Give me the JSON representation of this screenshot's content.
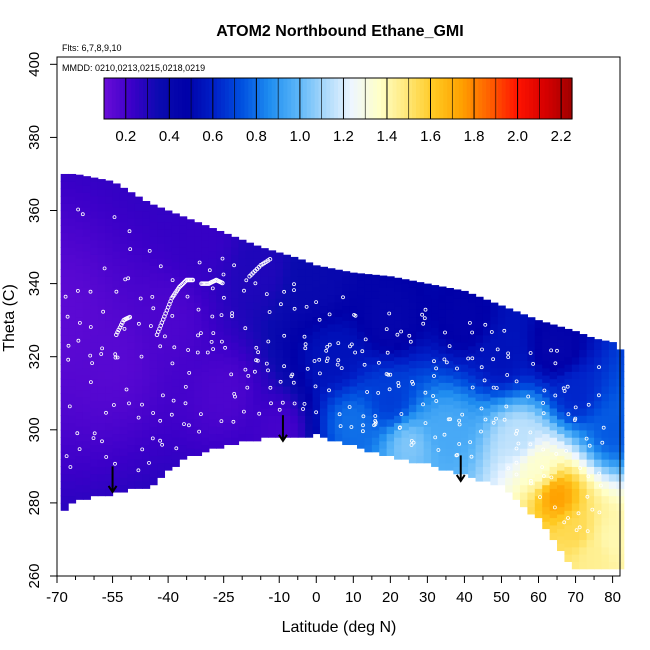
{
  "chart_data": {
    "type": "heatmap",
    "title": "ATOM2 Northbound Ethane_GMI",
    "flights_note": "Flts: 6,7,8,9,10",
    "dates_note": "MMDD: 0210,0213,0215,0218,0219",
    "xlabel": "Latitude (deg N)",
    "ylabel": "Theta (C)",
    "xlim": [
      -70,
      82
    ],
    "ylim": [
      260,
      402
    ],
    "x_major_ticks": [
      -70,
      -55,
      -40,
      -25,
      -10,
      0,
      10,
      20,
      30,
      40,
      50,
      60,
      70,
      80
    ],
    "x_minor_ticks": [
      -65,
      -60,
      -50,
      -45,
      -35,
      -30,
      -20,
      -15,
      -5,
      5,
      15,
      25,
      35,
      45,
      55,
      65,
      75
    ],
    "y_ticks": [
      260,
      280,
      300,
      320,
      340,
      360,
      380,
      400
    ],
    "colorbar": {
      "min": 0.1,
      "max": 2.25,
      "ticks": [
        0.2,
        0.4,
        0.6,
        0.8,
        1.0,
        1.2,
        1.4,
        1.6,
        1.8,
        2.0,
        2.2
      ],
      "tick_labels": [
        "0.2",
        "0.4",
        "0.6",
        "0.8",
        "1.0",
        "1.2",
        "1.4",
        "1.6",
        "1.8",
        "2.0",
        "2.2"
      ],
      "colors": [
        "#6a0dd8",
        "#3b00c8",
        "#0b0bb0",
        "#0000a8",
        "#0020c8",
        "#0050e0",
        "#1e8cf0",
        "#58b4f8",
        "#a8d8fb",
        "#eef6ff",
        "#ffffc8",
        "#ffe878",
        "#ffc820",
        "#ffa000",
        "#ff6000",
        "#ff1400",
        "#d80000",
        "#a00000"
      ]
    },
    "envelope": {
      "lat": [
        -69,
        -65,
        -55,
        -45,
        -35,
        -25,
        -15,
        -5,
        0,
        10,
        20,
        30,
        40,
        50,
        60,
        70,
        75,
        80,
        82
      ],
      "top_theta": [
        370,
        370,
        368,
        362,
        358,
        354,
        350,
        347,
        345,
        343,
        342,
        340,
        338,
        334,
        330,
        327,
        325,
        324,
        322
      ],
      "bottom_theta": [
        278,
        281,
        283,
        285,
        293,
        296,
        298,
        298,
        299,
        296,
        293,
        291,
        288,
        285,
        276,
        262,
        262,
        262,
        262
      ]
    },
    "field_anchors": [
      {
        "lat": -68,
        "theta": 330,
        "value": 0.14
      },
      {
        "lat": -55,
        "theta": 320,
        "value": 0.15
      },
      {
        "lat": -40,
        "theta": 330,
        "value": 0.18
      },
      {
        "lat": -25,
        "theta": 310,
        "value": 0.18
      },
      {
        "lat": -15,
        "theta": 345,
        "value": 0.3
      },
      {
        "lat": -30,
        "theta": 352,
        "value": 0.24
      },
      {
        "lat": -10,
        "theta": 300,
        "value": 0.2
      },
      {
        "lat": 0,
        "theta": 342,
        "value": 0.38
      },
      {
        "lat": 5,
        "theta": 320,
        "value": 0.55
      },
      {
        "lat": 10,
        "theta": 302,
        "value": 0.8
      },
      {
        "lat": 20,
        "theta": 330,
        "value": 0.42
      },
      {
        "lat": 20,
        "theta": 308,
        "value": 0.68
      },
      {
        "lat": 25,
        "theta": 296,
        "value": 1.05
      },
      {
        "lat": 35,
        "theta": 300,
        "value": 0.95
      },
      {
        "lat": 40,
        "theta": 330,
        "value": 0.45
      },
      {
        "lat": 50,
        "theta": 320,
        "value": 0.55
      },
      {
        "lat": 55,
        "theta": 298,
        "value": 1.15
      },
      {
        "lat": 60,
        "theta": 290,
        "value": 1.35
      },
      {
        "lat": 65,
        "theta": 282,
        "value": 1.75
      },
      {
        "lat": 70,
        "theta": 272,
        "value": 1.55
      },
      {
        "lat": 75,
        "theta": 266,
        "value": 1.45
      },
      {
        "lat": 80,
        "theta": 270,
        "value": 1.4
      },
      {
        "lat": 80,
        "theta": 300,
        "value": 0.75
      },
      {
        "lat": 70,
        "theta": 310,
        "value": 0.62
      },
      {
        "lat": 65,
        "theta": 322,
        "value": 0.42
      }
    ],
    "flight_tracks": [
      {
        "lat": [
          -43,
          -41,
          -39,
          -37,
          -35,
          -33
        ],
        "theta": [
          326,
          331,
          336,
          339,
          341,
          341
        ]
      },
      {
        "lat": [
          -31,
          -29,
          -27,
          -25
        ],
        "theta": [
          340,
          340,
          341,
          340
        ]
      },
      {
        "lat": [
          -18,
          -15,
          -12
        ],
        "theta": [
          342,
          345,
          347
        ]
      },
      {
        "lat": [
          -54,
          -52,
          -50
        ],
        "theta": [
          326,
          330,
          331
        ]
      }
    ],
    "arrows": [
      {
        "lat": -55,
        "theta_from": 290,
        "theta_to": 283
      },
      {
        "lat": -9,
        "theta_from": 304,
        "theta_to": 297
      },
      {
        "lat": 39,
        "theta_from": 293,
        "theta_to": 286
      }
    ]
  }
}
